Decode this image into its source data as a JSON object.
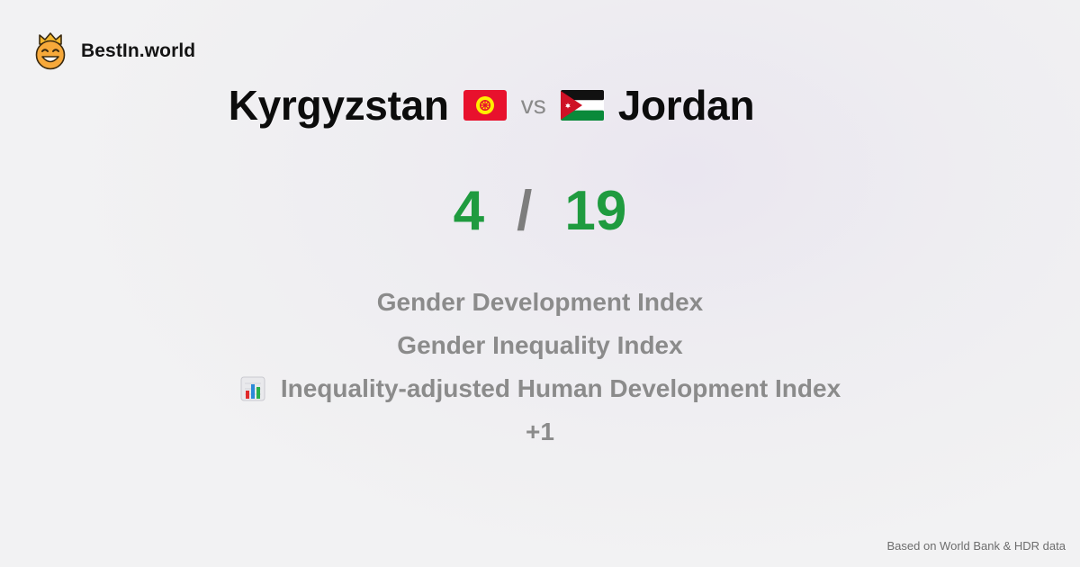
{
  "brand": {
    "name": "BestIn.world",
    "logo_icon": "crowned-smiley-logo"
  },
  "comparison": {
    "left_country": "Kyrgyzstan",
    "left_flag": "kyrgyzstan-flag",
    "vs_label": "vs",
    "right_country": "Jordan",
    "right_flag": "jordan-flag"
  },
  "score": {
    "left": "4",
    "separator": "/",
    "right": "19",
    "color": "#1f9b3f"
  },
  "metrics": [
    {
      "label": "Gender Development Index",
      "icon": ""
    },
    {
      "label": "Gender Inequality Index",
      "icon": ""
    },
    {
      "label": "Inequality-adjusted Human Development Index",
      "icon": "bar-chart-icon"
    },
    {
      "label": "+1",
      "icon": ""
    }
  ],
  "footer": {
    "source": "Based on World Bank & HDR data"
  }
}
